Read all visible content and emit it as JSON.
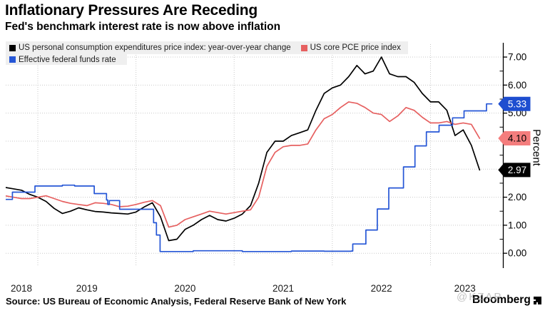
{
  "header": {
    "title": "Inflationary Pressures Are Receding",
    "subtitle": "Fed's benchmark interest rate is now above inflation"
  },
  "legend": {
    "items": [
      {
        "label": "US personal consumption expenditures price index: year-over-year change",
        "color": "#000000"
      },
      {
        "label": "US core PCE price index",
        "color": "#e66060"
      },
      {
        "label": "Effective federal funds rate",
        "color": "#2556d6"
      }
    ]
  },
  "footer": {
    "source": "Source: US Bureau of Economic Analysis, Federal Reserve Bank of New York",
    "brand": "Bloomberg",
    "watermark": "@KZAP"
  },
  "chart_data": {
    "type": "line",
    "title": "Inflationary Pressures Are Receding",
    "subtitle": "Fed's benchmark interest rate is now above inflation",
    "ylabel": "Percent",
    "ylim": [
      0,
      7
    ],
    "y_ticks": [
      0,
      1,
      2,
      3,
      4,
      5,
      6,
      7
    ],
    "y_tick_labels": [
      "0.00",
      "1.00",
      "2.00",
      "3.00",
      "4.00",
      "5.00",
      "6.00",
      "7.00"
    ],
    "x_year_labels": [
      "2018",
      "2019",
      "2020",
      "2021",
      "2022",
      "2023"
    ],
    "x_range_months": [
      "2018-08",
      "2023-08"
    ],
    "grid": "dotted",
    "legend_position": "top",
    "series": [
      {
        "name": "US personal consumption expenditures price index: year-over-year change",
        "color": "#000000",
        "style": "line",
        "start": "2018-08",
        "freq": "monthly",
        "values": [
          2.35,
          2.3,
          2.25,
          2.1,
          2.0,
          1.85,
          1.6,
          1.42,
          1.5,
          1.62,
          1.55,
          1.49,
          1.47,
          1.44,
          1.42,
          1.4,
          1.47,
          1.65,
          1.8,
          1.3,
          0.45,
          0.5,
          0.85,
          1.0,
          1.2,
          1.35,
          1.2,
          1.15,
          1.25,
          1.4,
          1.7,
          2.5,
          3.6,
          4.0,
          4.0,
          4.2,
          4.3,
          4.4,
          5.1,
          5.7,
          5.9,
          6.0,
          6.3,
          6.7,
          6.4,
          6.5,
          7.0,
          6.4,
          6.3,
          6.3,
          6.1,
          5.7,
          5.4,
          5.4,
          5.1,
          4.2,
          4.4,
          3.85,
          2.97
        ],
        "last_value_label": "2.97",
        "label_bg": "#000000",
        "label_fg": "#ffffff"
      },
      {
        "name": "US core PCE price index",
        "color": "#e66060",
        "style": "line",
        "start": "2018-08",
        "freq": "monthly",
        "values": [
          2.05,
          2.0,
          1.95,
          1.95,
          2.0,
          2.05,
          1.95,
          1.85,
          1.78,
          1.74,
          1.7,
          1.8,
          1.78,
          1.74,
          1.66,
          1.68,
          1.74,
          1.82,
          1.88,
          1.7,
          0.93,
          1.0,
          1.2,
          1.3,
          1.4,
          1.5,
          1.45,
          1.4,
          1.45,
          1.5,
          1.55,
          2.0,
          3.1,
          3.6,
          3.8,
          3.85,
          3.85,
          3.9,
          4.4,
          4.8,
          4.95,
          5.2,
          5.4,
          5.35,
          5.2,
          5.0,
          4.95,
          4.7,
          4.9,
          5.2,
          5.1,
          4.85,
          4.65,
          4.65,
          4.7,
          4.6,
          4.65,
          4.6,
          4.1
        ],
        "last_value_label": "4.10",
        "label_bg": "#f47d7d",
        "label_fg": "#000000"
      },
      {
        "name": "Effective federal funds rate",
        "color": "#2556d6",
        "style": "step",
        "points_months_from_2018_08": [
          [
            0.3,
            1.92
          ],
          [
            1.9,
            2.18
          ],
          [
            4.65,
            2.4
          ],
          [
            8,
            2.43
          ],
          [
            9.5,
            2.4
          ],
          [
            11.9,
            2.13
          ],
          [
            13.4,
            1.9
          ],
          [
            13.55,
            1.74
          ],
          [
            13.75,
            1.88
          ],
          [
            15.0,
            1.57
          ],
          [
            19.1,
            1.57
          ],
          [
            19.15,
            1.09
          ],
          [
            19.5,
            0.65
          ],
          [
            19.95,
            0.06
          ],
          [
            24,
            0.09
          ],
          [
            30,
            0.06
          ],
          [
            36,
            0.08
          ],
          [
            40,
            0.07
          ],
          [
            43.3,
            0.08
          ],
          [
            43.5,
            0.33
          ],
          [
            45.1,
            0.83
          ],
          [
            46.5,
            1.58
          ],
          [
            47.9,
            2.33
          ],
          [
            49.7,
            3.08
          ],
          [
            51.1,
            3.83
          ],
          [
            52.5,
            4.33
          ],
          [
            54.05,
            4.57
          ],
          [
            55.7,
            4.83
          ],
          [
            57.1,
            5.08
          ],
          [
            59.85,
            5.33
          ],
          [
            60.5,
            5.33
          ]
        ],
        "last_value_label": "5.33",
        "label_bg": "#1e4ed0",
        "label_fg": "#ffffff"
      }
    ]
  }
}
